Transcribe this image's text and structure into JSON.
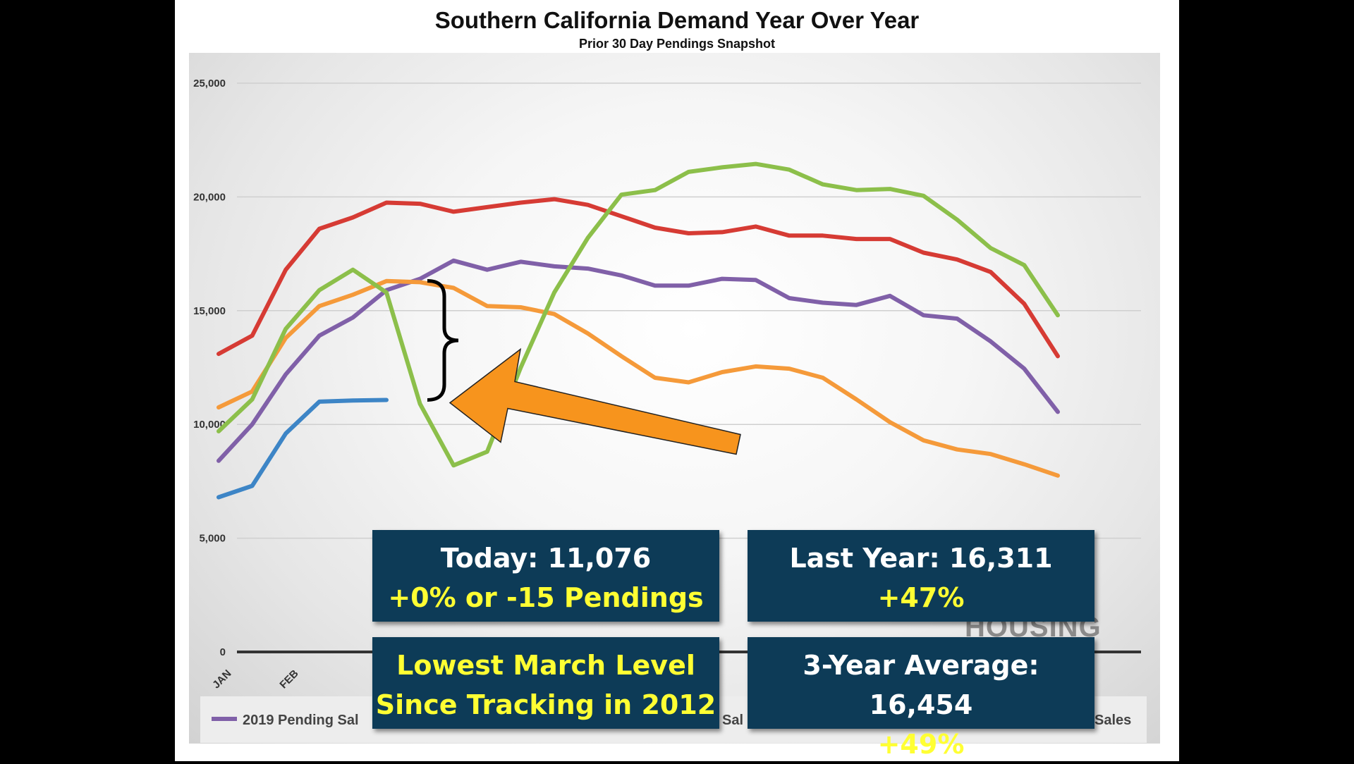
{
  "chart_data": {
    "type": "line",
    "title": "Southern California Demand Year Over Year",
    "subtitle": "Prior 30 Day Pendings Snapshot",
    "ylim": [
      0,
      25000
    ],
    "y_ticks": [
      "0",
      "5,000",
      "10,000",
      "15,000",
      "20,000",
      "25,000"
    ],
    "x_tick_labels": [
      "JAN",
      "FEB"
    ],
    "grid": "horizontal",
    "series": [
      {
        "name": "",
        "color": "#d63b34",
        "values": [
          13100,
          13900,
          16800,
          18600,
          19100,
          19750,
          19700,
          19350,
          19550,
          19750,
          19900,
          19650,
          19150,
          18650,
          18400,
          18450,
          18700,
          18300,
          18300,
          18150,
          18150,
          17550,
          17250,
          16700,
          15300,
          13000
        ]
      },
      {
        "name": "2019 Pending Sales",
        "color": "#8060a8",
        "values": [
          8400,
          10000,
          12200,
          13900,
          14700,
          15900,
          16400,
          17200,
          16800,
          17150,
          16950,
          16850,
          16550,
          16100,
          16100,
          16400,
          16350,
          15550,
          15350,
          15250,
          15650,
          14800,
          14650,
          13650,
          12450,
          10550
        ]
      },
      {
        "name": "",
        "color": "#f59a3a",
        "values": [
          10750,
          11450,
          13800,
          15200,
          15700,
          16300,
          16250,
          16000,
          15200,
          15150,
          14850,
          14000,
          13000,
          12050,
          11850,
          12300,
          12550,
          12450,
          12050,
          11100,
          10100,
          9300,
          8900,
          8700,
          8250,
          7750
        ]
      },
      {
        "name": "",
        "color": "#8cbf4a",
        "values": [
          9700,
          11100,
          14200,
          15900,
          16800,
          15800,
          10900,
          8200,
          8800,
          12500,
          15800,
          18200,
          20100,
          20300,
          21100,
          21300,
          21450,
          21200,
          20550,
          20300,
          20350,
          20050,
          19000,
          17750,
          17000,
          14800
        ]
      },
      {
        "name": "",
        "color": "#3d85c6",
        "values": [
          6800,
          7300,
          9600,
          11000,
          11050,
          11076
        ]
      }
    ],
    "legend": {
      "placement": "bottom",
      "visible_labels": [
        "2019 Pending Sal",
        "Sal",
        "Sales"
      ]
    },
    "annotations": [
      "brace",
      "arrow"
    ]
  },
  "callouts": {
    "today": {
      "line1": "Today: 11,076",
      "line2": "+0% or -15 Pendings"
    },
    "last_year": {
      "line1": "Last Year: 16,311",
      "line2": "+47%"
    },
    "lowest": {
      "line1": "Lowest March Level",
      "line2": "Since Tracking in 2012"
    },
    "three_year": {
      "line1": "3-Year Average: 16,454",
      "line2": "+49%"
    }
  },
  "watermark": "HOUSING",
  "colors": {
    "callout_bg": "#0d3b57",
    "callout_highlight": "#ffff33",
    "arrow": "#f7941d"
  }
}
